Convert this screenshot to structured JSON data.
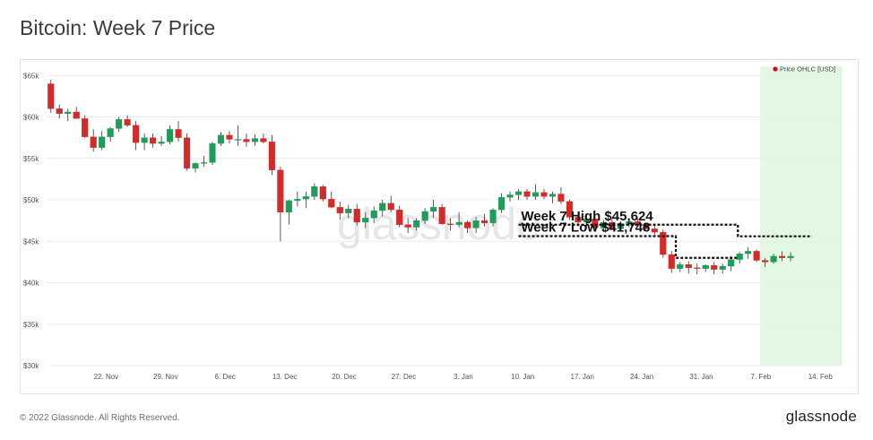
{
  "title": "Bitcoin: Week 7 Price",
  "footer": {
    "copyright": "© 2022 Glassnode. All Rights Reserved.",
    "logo": "glassnode"
  },
  "watermark": "glassnode",
  "colors": {
    "up": "#1e9c5a",
    "down": "#d42a2a",
    "highlight": "#e3f8e3",
    "legend_dot": "#e0001b"
  },
  "chart_data": {
    "type": "candlestick",
    "legend": {
      "label": "Price OHLC [USD]",
      "position": "top-right"
    },
    "y_ticks": [
      {
        "value": 30000,
        "label": "$30k"
      },
      {
        "value": 35000,
        "label": "$35k"
      },
      {
        "value": 40000,
        "label": "$40k"
      },
      {
        "value": 45000,
        "label": "$45k"
      },
      {
        "value": 50000,
        "label": "$50k"
      },
      {
        "value": 55000,
        "label": "$55k"
      },
      {
        "value": 60000,
        "label": "$60k"
      },
      {
        "value": 65000,
        "label": "$65k"
      }
    ],
    "ylim": [
      30000,
      66000
    ],
    "x_ticks": [
      {
        "day": 7,
        "label": "22. Nov"
      },
      {
        "day": 14,
        "label": "29. Nov"
      },
      {
        "day": 21,
        "label": "6. Dec"
      },
      {
        "day": 28,
        "label": "13. Dec"
      },
      {
        "day": 35,
        "label": "20. Dec"
      },
      {
        "day": 42,
        "label": "27. Dec"
      },
      {
        "day": 49,
        "label": "3. Jan"
      },
      {
        "day": 56,
        "label": "10. Jan"
      },
      {
        "day": 63,
        "label": "17. Jan"
      },
      {
        "day": 70,
        "label": "24. Jan"
      },
      {
        "day": 77,
        "label": "31. Jan"
      },
      {
        "day": 84,
        "label": "7. Feb"
      },
      {
        "day": 91,
        "label": "14. Feb"
      }
    ],
    "xlim": [
      0,
      93.5
    ],
    "highlight_range": [
      84,
      93.5
    ],
    "annotations": [
      {
        "label": "Week 7 High $45,624",
        "value": 45624
      },
      {
        "label": "Week 7 Low $41,748",
        "value": 41748
      }
    ],
    "ohlc": [
      [
        64000,
        64500,
        60500,
        61000
      ],
      [
        61000,
        61500,
        59800,
        60400
      ],
      [
        60400,
        61000,
        59500,
        60600
      ],
      [
        60600,
        61200,
        60000,
        59800
      ],
      [
        59800,
        60200,
        57500,
        57600
      ],
      [
        57600,
        58500,
        55800,
        56300
      ],
      [
        56300,
        58300,
        56000,
        57600
      ],
      [
        57600,
        58800,
        57000,
        58600
      ],
      [
        58600,
        60000,
        58200,
        59700
      ],
      [
        59700,
        60200,
        58800,
        59000
      ],
      [
        59000,
        59500,
        56000,
        56900
      ],
      [
        56900,
        58000,
        56000,
        57500
      ],
      [
        57500,
        58000,
        56300,
        56800
      ],
      [
        56800,
        57700,
        56500,
        57000
      ],
      [
        57000,
        59000,
        56700,
        58500
      ],
      [
        58500,
        59500,
        57000,
        57500
      ],
      [
        57500,
        58000,
        53500,
        53800
      ],
      [
        53800,
        54500,
        53300,
        54400
      ],
      [
        54400,
        55300,
        54000,
        54500
      ],
      [
        54500,
        57000,
        54200,
        56800
      ],
      [
        56800,
        58200,
        56500,
        57800
      ],
      [
        57800,
        58300,
        56800,
        57300
      ],
      [
        57300,
        59000,
        56500,
        57300
      ],
      [
        57300,
        58000,
        56400,
        57000
      ],
      [
        57000,
        57900,
        56500,
        57400
      ],
      [
        57400,
        58000,
        56800,
        57000
      ],
      [
        57000,
        57800,
        53000,
        53600
      ],
      [
        53600,
        54000,
        45000,
        48500
      ],
      [
        48500,
        50000,
        47000,
        49900
      ],
      [
        49900,
        51000,
        49200,
        50100
      ],
      [
        50100,
        51000,
        49000,
        50400
      ],
      [
        50400,
        52000,
        50000,
        51600
      ],
      [
        51600,
        51800,
        49800,
        50100
      ],
      [
        50100,
        51000,
        49000,
        49100
      ],
      [
        49100,
        49800,
        47600,
        48400
      ],
      [
        48400,
        49400,
        47800,
        48900
      ],
      [
        48900,
        49500,
        46900,
        47300
      ],
      [
        47300,
        48500,
        46600,
        47800
      ],
      [
        47800,
        49200,
        47200,
        48700
      ],
      [
        48700,
        50000,
        48000,
        49600
      ],
      [
        49600,
        50500,
        48500,
        48800
      ],
      [
        48800,
        49300,
        46700,
        47000
      ],
      [
        47000,
        47800,
        46000,
        46700
      ],
      [
        46700,
        47800,
        46300,
        47500
      ],
      [
        47500,
        49000,
        47100,
        48600
      ],
      [
        48600,
        50000,
        47800,
        49100
      ],
      [
        49100,
        49500,
        47000,
        47100
      ],
      [
        47100,
        47800,
        46300,
        47000
      ],
      [
        47000,
        48500,
        46700,
        47300
      ],
      [
        47300,
        47500,
        46000,
        46600
      ],
      [
        46600,
        47900,
        46000,
        47500
      ],
      [
        47500,
        48300,
        46800,
        47200
      ],
      [
        47200,
        49000,
        46800,
        48800
      ],
      [
        48800,
        50800,
        48400,
        50300
      ],
      [
        50300,
        51000,
        49800,
        50600
      ],
      [
        50600,
        51300,
        50000,
        51000
      ],
      [
        51000,
        51300,
        50000,
        50400
      ],
      [
        50400,
        51900,
        50000,
        50900
      ],
      [
        50900,
        51300,
        50100,
        50400
      ],
      [
        50400,
        51000,
        49600,
        50700
      ],
      [
        50700,
        51500,
        49500,
        49800
      ],
      [
        49800,
        50000,
        47600,
        47900
      ],
      [
        47900,
        48000,
        46800,
        47300
      ],
      [
        47300,
        48200,
        46700,
        47700
      ],
      [
        47700,
        48000,
        46500,
        46600
      ],
      [
        46600,
        47600,
        46100,
        47300
      ],
      [
        47300,
        47700,
        46400,
        46500
      ],
      [
        46500,
        47400,
        46200,
        47100
      ],
      [
        47100,
        47800,
        46700,
        47400
      ],
      [
        47400,
        47800,
        46800,
        47000
      ],
      [
        47000,
        47200,
        46300,
        46500
      ],
      [
        46500,
        47000,
        45800,
        46100
      ],
      [
        46100,
        46400,
        43000,
        43400
      ],
      [
        43400,
        43800,
        41200,
        41700
      ],
      [
        41700,
        42500,
        41300,
        42200
      ],
      [
        42200,
        42600,
        41100,
        41800
      ],
      [
        41800,
        42300,
        41000,
        41700
      ],
      [
        41700,
        42200,
        41300,
        42100
      ],
      [
        42100,
        42500,
        41000,
        41600
      ],
      [
        41600,
        42300,
        41100,
        42000
      ],
      [
        42000,
        43200,
        41400,
        42800
      ],
      [
        42800,
        43700,
        42300,
        43500
      ],
      [
        43500,
        44300,
        42900,
        43800
      ],
      [
        43800,
        44000,
        42500,
        42700
      ],
      [
        42700,
        43000,
        41900,
        42500
      ],
      [
        42500,
        43500,
        42300,
        43200
      ],
      [
        43200,
        43800,
        42600,
        43000
      ],
      [
        43000,
        43700,
        42600,
        43200
      ]
    ]
  }
}
